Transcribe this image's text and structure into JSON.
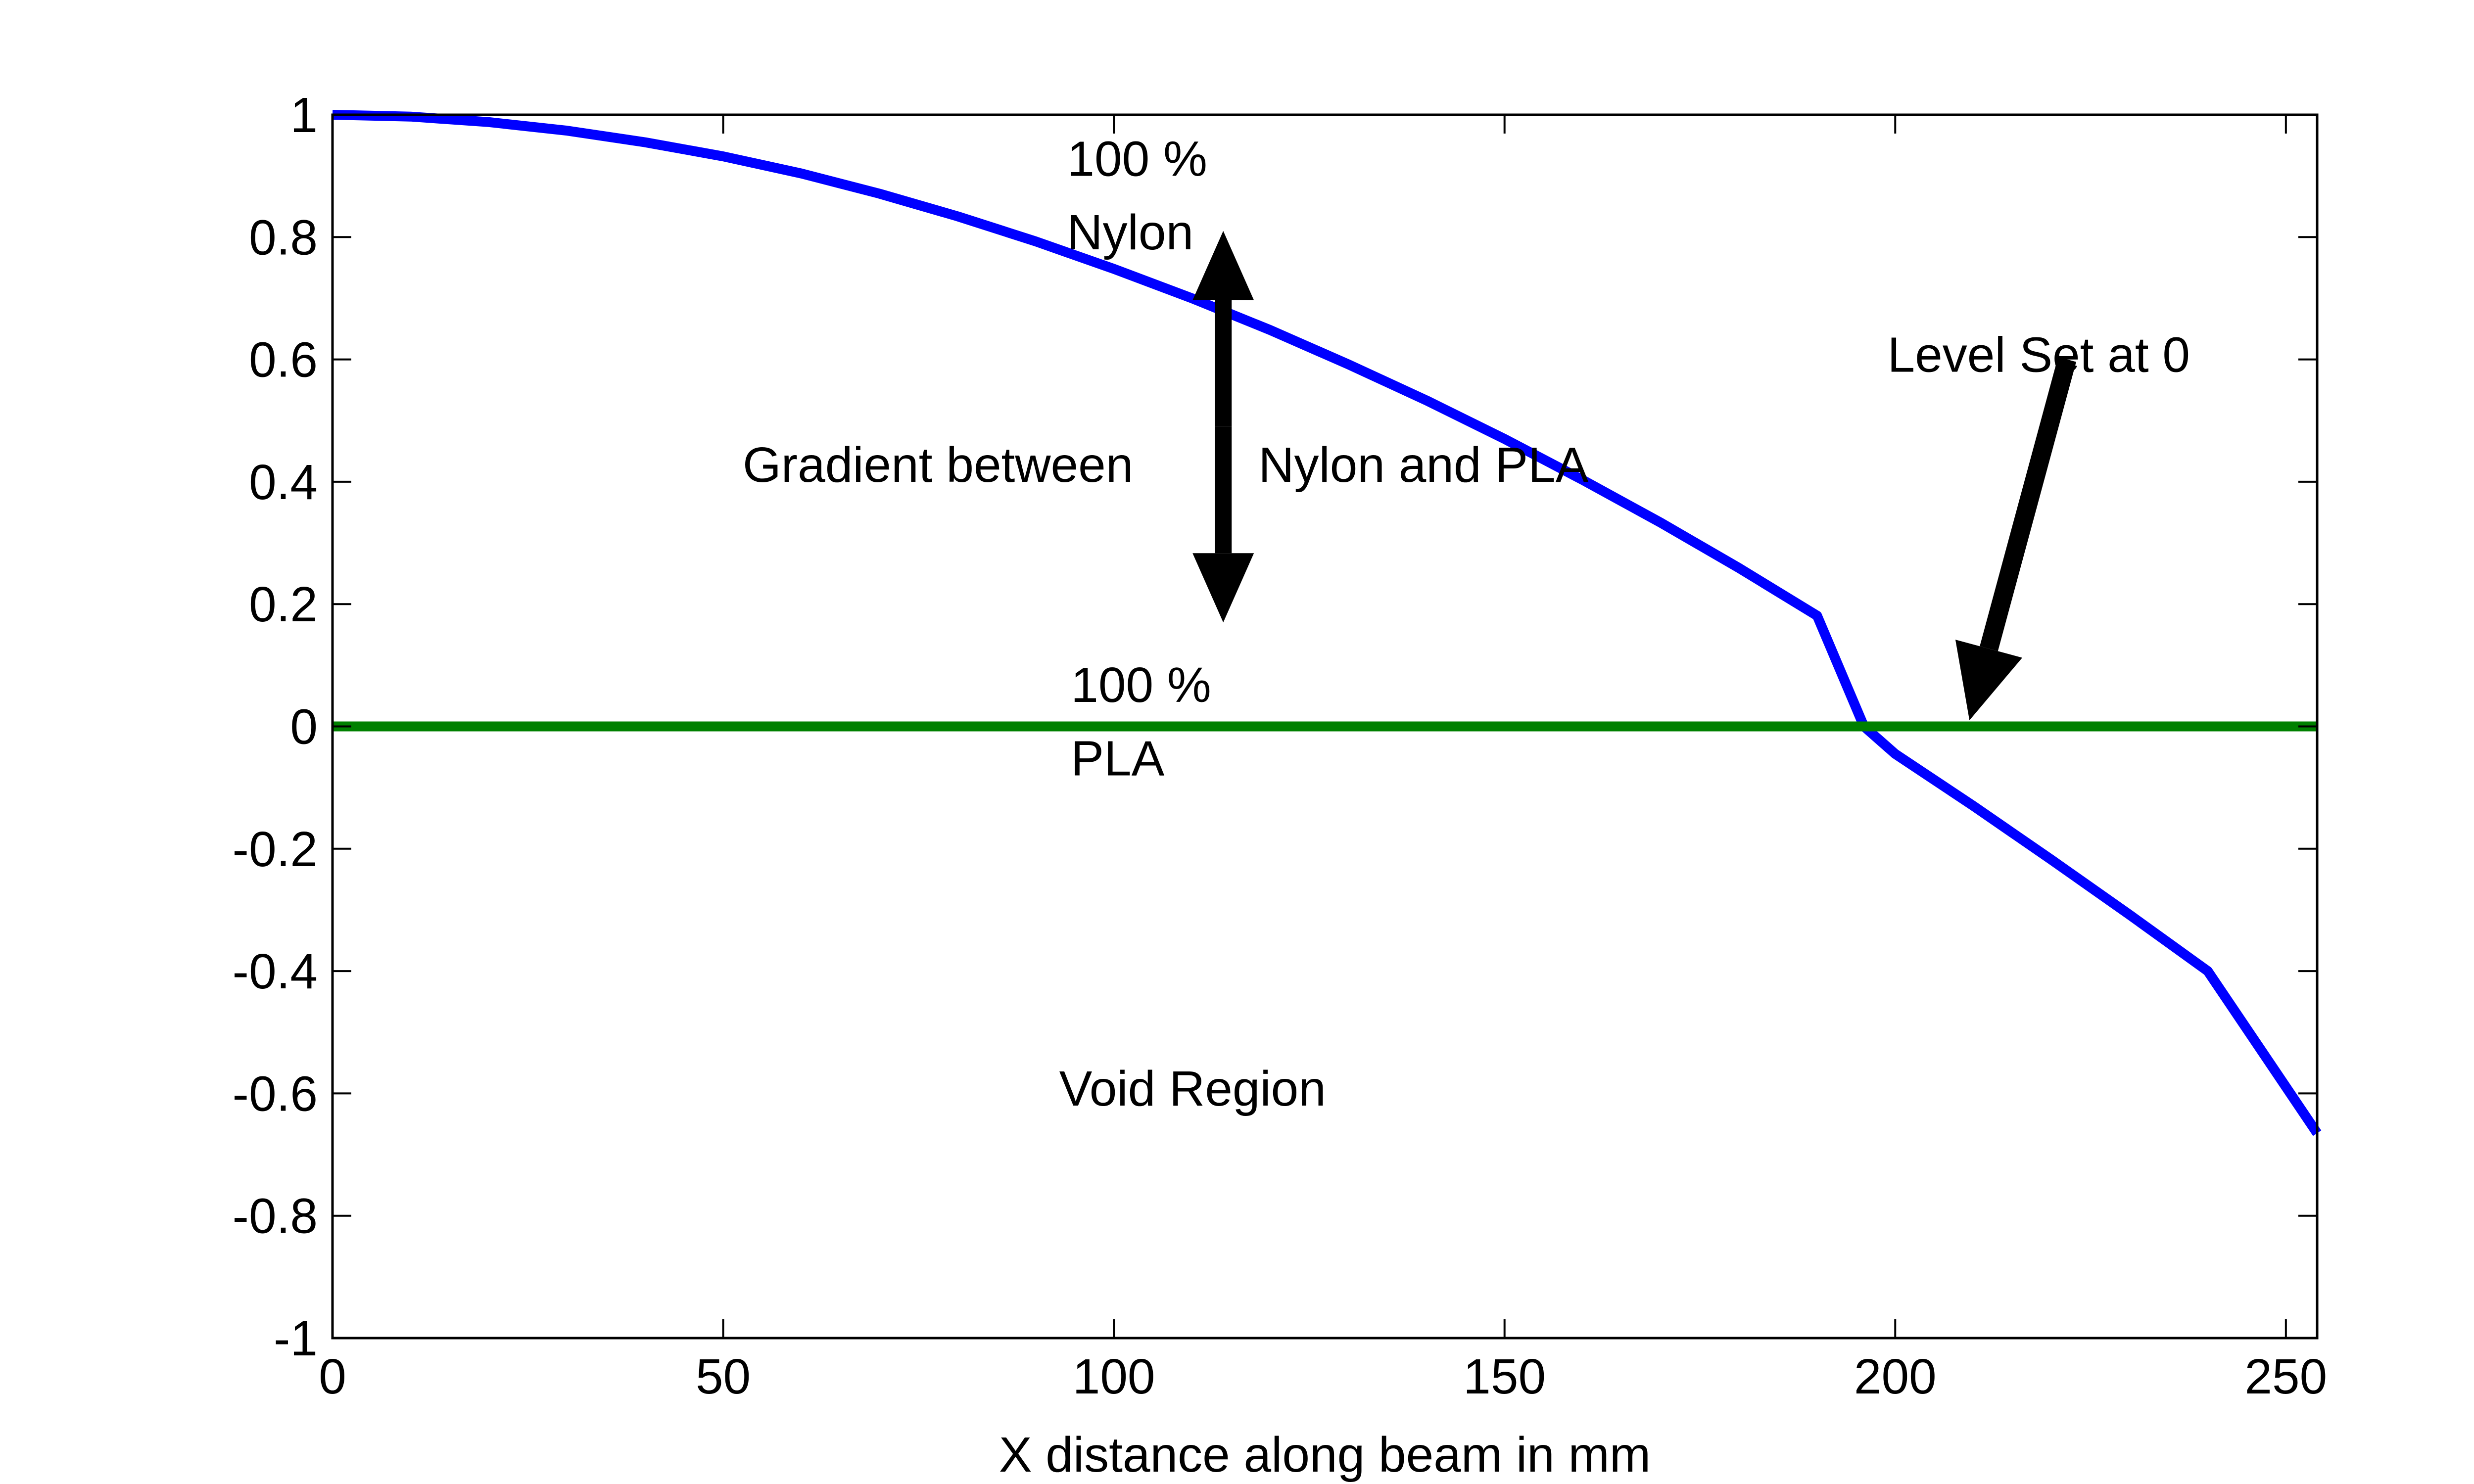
{
  "chart_data": {
    "type": "line",
    "title": "",
    "xlabel": "X distance along beam in mm",
    "ylabel": "",
    "xlim": [
      0,
      254
    ],
    "ylim": [
      -1,
      1
    ],
    "x_ticks": [
      0,
      50,
      100,
      150,
      200,
      250
    ],
    "y_ticks": [
      1,
      0.8,
      0.6,
      0.4,
      0.2,
      0,
      -0.2,
      -0.4,
      -0.6,
      -0.8,
      -1
    ],
    "x_tick_labels": [
      "0",
      "50",
      "100",
      "150",
      "200",
      "250"
    ],
    "y_tick_labels": [
      "1",
      "0.8",
      "0.6",
      "0.4",
      "0.2",
      "0",
      "-0.2",
      "-0.4",
      "-0.6",
      "-0.8",
      "-1"
    ],
    "grid": false,
    "series": [
      {
        "color": "#0000ff",
        "x": [
          0,
          10,
          20,
          30,
          40,
          50,
          60,
          70,
          80,
          90,
          100,
          110,
          120,
          130,
          140,
          150,
          160,
          170,
          180,
          190,
          196,
          200,
          210,
          220,
          230,
          240,
          254
        ],
        "y": [
          1.0,
          0.997,
          0.988,
          0.974,
          0.955,
          0.932,
          0.904,
          0.871,
          0.834,
          0.793,
          0.748,
          0.7,
          0.648,
          0.592,
          0.533,
          0.47,
          0.403,
          0.333,
          0.259,
          0.181,
          0.0,
          -0.045,
          -0.13,
          -0.218,
          -0.308,
          -0.4,
          -0.665
        ]
      },
      {
        "color": "#008000",
        "x": [
          0,
          254
        ],
        "y": [
          0,
          0
        ]
      }
    ],
    "annotations": {
      "nylon_line1": "100 %",
      "nylon_line2": "Nylon",
      "gradient_left": "Gradient between",
      "gradient_right": "Nylon and PLA",
      "pla_line1": "100 %",
      "pla_line2": "PLA",
      "level_set": "Level Set at 0",
      "void": "Void Region"
    }
  }
}
